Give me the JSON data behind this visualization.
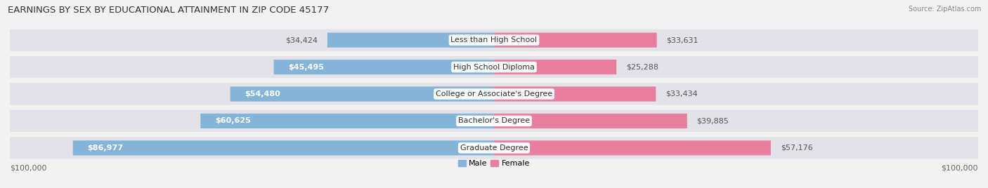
{
  "title": "EARNINGS BY SEX BY EDUCATIONAL ATTAINMENT IN ZIP CODE 45177",
  "source": "Source: ZipAtlas.com",
  "categories": [
    "Less than High School",
    "High School Diploma",
    "College or Associate's Degree",
    "Bachelor's Degree",
    "Graduate Degree"
  ],
  "male_values": [
    34424,
    45495,
    54480,
    60625,
    86977
  ],
  "female_values": [
    33631,
    25288,
    33434,
    39885,
    57176
  ],
  "male_color": "#85b4d9",
  "female_color": "#e87fa0",
  "row_bg_color": "#e2e2e8",
  "max_value": 100000,
  "male_labels": [
    "$34,424",
    "$45,495",
    "$54,480",
    "$60,625",
    "$86,977"
  ],
  "female_labels": [
    "$33,631",
    "$25,288",
    "$33,434",
    "$39,885",
    "$57,176"
  ],
  "x_tick_label": "$100,000",
  "legend_male": "Male",
  "legend_female": "Female",
  "background_color": "#f2f2f2",
  "title_fontsize": 9.5,
  "label_fontsize": 8,
  "category_fontsize": 8
}
